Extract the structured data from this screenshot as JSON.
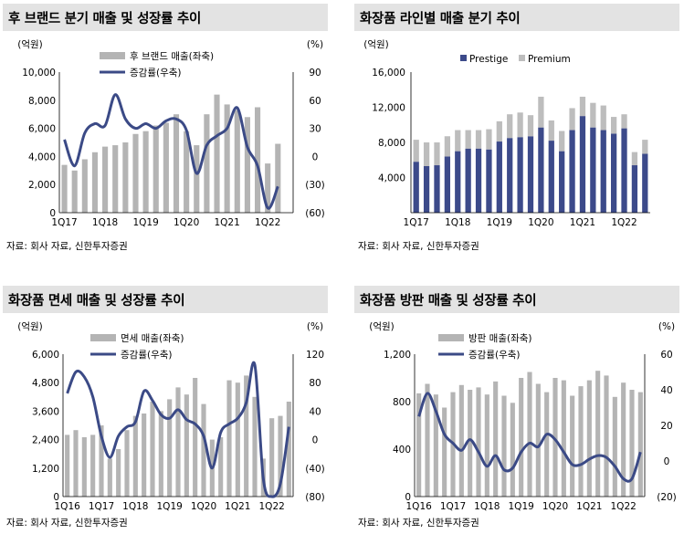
{
  "chart_data": [
    {
      "type": "bar+line",
      "title": "후 브랜드 분기 매출 및 성장률 추이",
      "ylabel_left": "(억원)",
      "ylabel_right": "(%)",
      "ylim_left": [
        0,
        10000
      ],
      "ylim_right": [
        -60,
        90
      ],
      "yticks_left": [
        "0",
        "2,000",
        "4,000",
        "6,000",
        "8,000",
        "10,000"
      ],
      "yticks_right": [
        "(60)",
        "(30)",
        "0",
        "30",
        "60",
        "90"
      ],
      "ytick_left_values": [
        0,
        2000,
        4000,
        6000,
        8000,
        10000
      ],
      "ytick_right_values": [
        -60,
        -30,
        0,
        30,
        60,
        90
      ],
      "xtick_labels": [
        "1Q17",
        "1Q18",
        "1Q19",
        "1Q20",
        "1Q21",
        "1Q22"
      ],
      "xtick_index": [
        0,
        4,
        8,
        12,
        16,
        20
      ],
      "legend": [
        "후 브랜드 매출(좌축)",
        "증감률(우축)"
      ],
      "categories": [
        "1Q17",
        "2Q17",
        "3Q17",
        "4Q17",
        "1Q18",
        "2Q18",
        "3Q18",
        "4Q18",
        "1Q19",
        "2Q19",
        "3Q19",
        "4Q19",
        "1Q20",
        "2Q20",
        "3Q20",
        "4Q20",
        "1Q21",
        "2Q21",
        "3Q21",
        "4Q21",
        "1Q22",
        "2Q22",
        "3Q22"
      ],
      "bars": [
        3400,
        3000,
        3800,
        4300,
        4700,
        4800,
        5000,
        5600,
        5800,
        6200,
        6400,
        7000,
        5800,
        4800,
        7000,
        8400,
        7700,
        7300,
        6800,
        7500,
        3500,
        4900,
        0
      ],
      "line": [
        18,
        -10,
        25,
        35,
        33,
        66,
        40,
        30,
        35,
        30,
        38,
        40,
        28,
        -18,
        12,
        22,
        30,
        52,
        10,
        -10,
        -55,
        -32,
        null
      ],
      "source": "자료: 회사 자료, 신한투자증권"
    },
    {
      "type": "stacked-bar",
      "title": "화장품 라인별 매출 분기 추이",
      "ylabel_left": "(억원)",
      "ylim_left": [
        0,
        16000
      ],
      "yticks_left": [
        "4,000",
        "8,000",
        "12,000",
        "16,000"
      ],
      "ytick_left_values": [
        4000,
        8000,
        12000,
        16000
      ],
      "xtick_labels": [
        "1Q17",
        "1Q18",
        "1Q19",
        "1Q20",
        "1Q21",
        "1Q22"
      ],
      "xtick_index": [
        0,
        4,
        8,
        12,
        16,
        20
      ],
      "legend": [
        "Prestige",
        "Premium"
      ],
      "categories": [
        "1Q17",
        "2Q17",
        "3Q17",
        "4Q17",
        "1Q18",
        "2Q18",
        "3Q18",
        "4Q18",
        "1Q19",
        "2Q19",
        "3Q19",
        "4Q19",
        "1Q20",
        "2Q20",
        "3Q20",
        "4Q20",
        "1Q21",
        "2Q21",
        "3Q21",
        "4Q21",
        "1Q22",
        "2Q22",
        "3Q22"
      ],
      "series": [
        {
          "name": "Prestige",
          "values": [
            5800,
            5300,
            5400,
            6400,
            7000,
            7300,
            7300,
            7200,
            8100,
            8500,
            8600,
            8700,
            9700,
            8200,
            7000,
            9400,
            11000,
            9700,
            9400,
            9000,
            9600,
            5400,
            6700
          ]
        },
        {
          "name": "Premium",
          "values": [
            2500,
            2700,
            2600,
            2300,
            2400,
            2100,
            2100,
            2300,
            2300,
            2700,
            2800,
            2400,
            3500,
            2300,
            2300,
            2500,
            2200,
            2800,
            2800,
            1900,
            1600,
            1500,
            1600
          ]
        }
      ],
      "source": "자료: 회사 자료, 신한투자증권"
    },
    {
      "type": "bar+line",
      "title": "화장품 면세 매출 및 성장률 추이",
      "ylabel_left": "(억원)",
      "ylabel_right": "(%)",
      "ylim_left": [
        0,
        6000
      ],
      "ylim_right": [
        -80,
        120
      ],
      "yticks_left": [
        "0",
        "1,200",
        "2,400",
        "3,600",
        "4,800",
        "6,000"
      ],
      "yticks_right": [
        "(80)",
        "(40)",
        "0",
        "40",
        "80",
        "120"
      ],
      "ytick_left_values": [
        0,
        1200,
        2400,
        3600,
        4800,
        6000
      ],
      "ytick_right_values": [
        -80,
        -40,
        0,
        40,
        80,
        120
      ],
      "xtick_labels": [
        "1Q16",
        "1Q17",
        "1Q18",
        "1Q19",
        "1Q20",
        "1Q21",
        "1Q22"
      ],
      "xtick_index": [
        0,
        4,
        8,
        12,
        16,
        20,
        24
      ],
      "legend": [
        "면세 매출(좌축)",
        "증감률(우축)"
      ],
      "categories": [
        "1Q16",
        "2Q16",
        "3Q16",
        "4Q16",
        "1Q17",
        "2Q17",
        "3Q17",
        "4Q17",
        "1Q18",
        "2Q18",
        "3Q18",
        "4Q18",
        "1Q19",
        "2Q19",
        "3Q19",
        "4Q19",
        "1Q20",
        "2Q20",
        "3Q20",
        "4Q20",
        "1Q21",
        "2Q21",
        "3Q21",
        "4Q21",
        "1Q22",
        "2Q22",
        "3Q22"
      ],
      "bars": [
        2600,
        2800,
        2500,
        2600,
        3000,
        1600,
        2000,
        2800,
        3400,
        3500,
        4000,
        3600,
        4100,
        4600,
        4300,
        5000,
        3900,
        2400,
        2500,
        4900,
        4800,
        5100,
        4200,
        1600,
        3300,
        3400,
        4000
      ],
      "line": [
        65,
        95,
        88,
        60,
        5,
        -25,
        5,
        18,
        25,
        68,
        55,
        35,
        30,
        42,
        28,
        22,
        5,
        -40,
        10,
        22,
        30,
        52,
        105,
        -55,
        -80,
        -62,
        18
      ],
      "source": "자료: 회사 자료, 신한투자증권"
    },
    {
      "type": "bar+line",
      "title": "화장품 방판 매출 및 성장률 추이",
      "ylabel_left": "(억원)",
      "ylabel_right": "(%)",
      "ylim_left": [
        0,
        1200
      ],
      "ylim_right": [
        -20,
        60
      ],
      "yticks_left": [
        "0",
        "400",
        "800",
        "1,200"
      ],
      "yticks_right": [
        "(20)",
        "0",
        "20",
        "40",
        "60"
      ],
      "ytick_left_values": [
        0,
        400,
        800,
        1200
      ],
      "ytick_right_values": [
        -20,
        0,
        20,
        40,
        60
      ],
      "xtick_labels": [
        "1Q16",
        "1Q17",
        "1Q18",
        "1Q19",
        "1Q20",
        "1Q21",
        "1Q22"
      ],
      "xtick_index": [
        0,
        4,
        8,
        12,
        16,
        20,
        24
      ],
      "legend": [
        "방판 매출(좌축)",
        "증감률(우축)"
      ],
      "categories": [
        "1Q16",
        "2Q16",
        "3Q16",
        "4Q16",
        "1Q17",
        "2Q17",
        "3Q17",
        "4Q17",
        "1Q18",
        "2Q18",
        "3Q18",
        "4Q18",
        "1Q19",
        "2Q19",
        "3Q19",
        "4Q19",
        "1Q20",
        "2Q20",
        "3Q20",
        "4Q20",
        "1Q21",
        "2Q21",
        "3Q21",
        "4Q21",
        "1Q22",
        "2Q22",
        "3Q22"
      ],
      "bars": [
        870,
        950,
        860,
        750,
        880,
        940,
        900,
        920,
        860,
        970,
        850,
        790,
        1000,
        1050,
        950,
        880,
        1000,
        980,
        850,
        930,
        980,
        1060,
        1020,
        840,
        960,
        900,
        880
      ],
      "line": [
        25,
        38,
        28,
        15,
        10,
        6,
        12,
        5,
        -3,
        3,
        -5,
        -4,
        5,
        10,
        8,
        15,
        12,
        5,
        -2,
        -2,
        1,
        3,
        2,
        -3,
        -10,
        -10,
        5
      ],
      "source": "자료: 회사 자료, 신한투자증권"
    }
  ]
}
